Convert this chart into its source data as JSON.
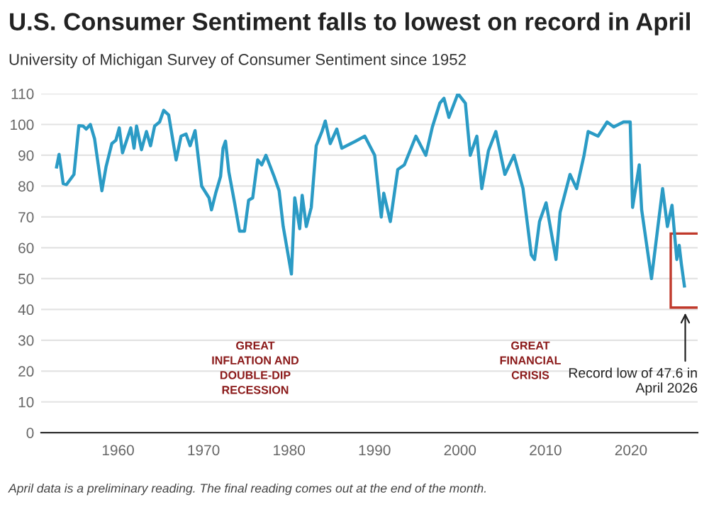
{
  "chart_data": {
    "type": "line",
    "title": "U.S. Consumer Sentiment falls to lowest on record in April",
    "subtitle": "University of Michigan Survey of Consumer Sentiment since 1952",
    "x": [
      1952.81,
      1953.1,
      1953.58,
      1953.97,
      1954.84,
      1955.41,
      1955.9,
      1956.28,
      1956.76,
      1957.25,
      1958.11,
      1958.59,
      1959.27,
      1959.75,
      1960.14,
      1960.52,
      1961.49,
      1961.87,
      1962.16,
      1962.74,
      1963.32,
      1963.8,
      1964.28,
      1964.86,
      1965.34,
      1965.92,
      1966.79,
      1967.37,
      1967.95,
      1968.43,
      1969.01,
      1969.78,
      1970.64,
      1970.93,
      1971.42,
      1971.99,
      1972.28,
      1972.57,
      1972.96,
      1973.63,
      1974.21,
      1974.79,
      1975.27,
      1975.75,
      1976.33,
      1976.81,
      1977.3,
      1978.26,
      1978.84,
      1979.32,
      1980.28,
      1980.67,
      1981.25,
      1981.54,
      1982.02,
      1982.6,
      1983.18,
      1983.85,
      1984.24,
      1984.82,
      1985.59,
      1986.17,
      1987.8,
      1988.86,
      1990.02,
      1990.79,
      1991.08,
      1991.85,
      1992.72,
      1993.49,
      1994.84,
      1996.0,
      1996.77,
      1997.64,
      1998.12,
      1998.7,
      1999.76,
      2000.63,
      2001.2,
      2001.97,
      2002.55,
      2003.33,
      2004.19,
      2005.25,
      2006.31,
      2007.37,
      2008.34,
      2008.72,
      2009.3,
      2010.07,
      2011.23,
      2011.71,
      2012.87,
      2013.64,
      2014.51,
      2014.99,
      2016.15,
      2017.21,
      2017.98,
      2019.13,
      2019.91,
      2020.19,
      2020.97,
      2021.25,
      2022.4,
      2023.7,
      2024.26,
      2024.8,
      2025.36,
      2025.64,
      2025.9,
      2026.25
    ],
    "series": [
      {
        "color": "#2b9bc5",
        "values": [
          86.2,
          90.3,
          80.8,
          80.5,
          83.8,
          99.6,
          99.5,
          98.5,
          100,
          95.4,
          78.5,
          86.2,
          93.8,
          94.9,
          98.9,
          90.8,
          98.9,
          92.3,
          99.5,
          91.8,
          97.7,
          93.1,
          99.5,
          100.8,
          104.6,
          103.1,
          88.5,
          96.2,
          96.9,
          93.1,
          98,
          80,
          76.2,
          72.3,
          77.7,
          83.1,
          92.3,
          94.6,
          84.6,
          74.6,
          65.4,
          65.4,
          75.4,
          76.2,
          88.5,
          86.9,
          90,
          83.1,
          78.5,
          66.9,
          51.5,
          76.2,
          66.2,
          77,
          66.9,
          73.1,
          93.1,
          97.7,
          101.1,
          93.8,
          98.5,
          92.3,
          94.6,
          96.2,
          90,
          70,
          77.7,
          68.5,
          85.4,
          86.9,
          96.2,
          90,
          99.2,
          106.9,
          108.5,
          102.3,
          110,
          106.9,
          90,
          96.2,
          79.2,
          91.5,
          97.7,
          83.8,
          90,
          79.2,
          57.7,
          56.2,
          68.5,
          74.6,
          56.2,
          71.5,
          83.8,
          79.2,
          90,
          97.7,
          96.2,
          100.8,
          99.2,
          100.8,
          100.8,
          73.1,
          86.9,
          72.3,
          50,
          79.2,
          66.9,
          73.8,
          56.2,
          60.8,
          54.6,
          47.6
        ]
      }
    ],
    "xlim": [
      1951,
      2027.8
    ],
    "ylim": [
      0,
      110
    ],
    "xticks": [
      1960,
      1970,
      1980,
      1990,
      2000,
      2010,
      2020
    ],
    "yticks": [
      0,
      10,
      20,
      30,
      40,
      50,
      60,
      70,
      80,
      90,
      100,
      110
    ],
    "grid": "y",
    "line_style": "solid",
    "marker": "none",
    "annotations": [
      "GREAT\nINFLATION AND\nDOUBLE-DIP\nRECESSION",
      "GREAT\nFINANCIAL\nCRISIS",
      "Record low of 47.6 in\nApril 2026",
      "April data is a preliminary reading. The final reading comes out at the end of the month."
    ]
  }
}
